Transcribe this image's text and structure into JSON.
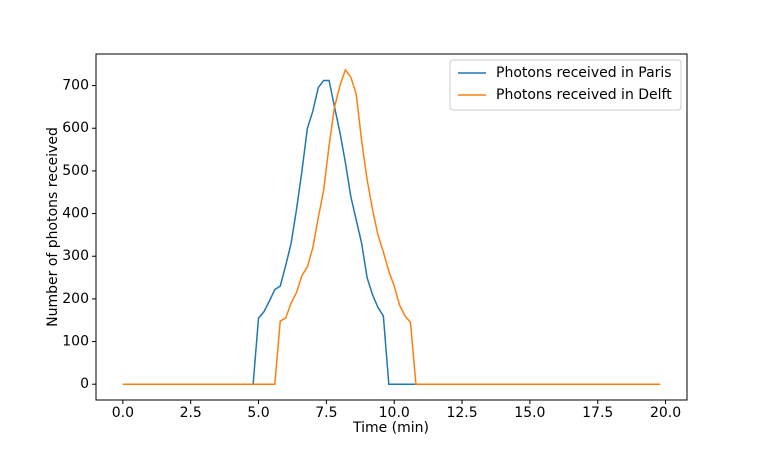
{
  "chart_data": {
    "type": "line",
    "xlabel": "Time (min)",
    "ylabel": "Number of photons received",
    "x": [
      0,
      0.2,
      0.4,
      0.6,
      0.8,
      1,
      1.2,
      1.4,
      1.6,
      1.8,
      2,
      2.2,
      2.4,
      2.6,
      2.8,
      3,
      3.2,
      3.4,
      3.6,
      3.8,
      4,
      4.2,
      4.4,
      4.6,
      4.8,
      5,
      5.2,
      5.4,
      5.6,
      5.8,
      6,
      6.2,
      6.4,
      6.6,
      6.8,
      7,
      7.2,
      7.4,
      7.6,
      7.8,
      8,
      8.2,
      8.4,
      8.6,
      8.8,
      9,
      9.2,
      9.4,
      9.6,
      9.8,
      10,
      10.2,
      10.4,
      10.6,
      10.8,
      11,
      11.2,
      11.4,
      11.6,
      11.8,
      12,
      12.2,
      12.4,
      12.6,
      12.8,
      13,
      13.2,
      13.4,
      13.6,
      13.8,
      14,
      14.2,
      14.4,
      14.6,
      14.8,
      15,
      15.2,
      15.4,
      15.6,
      15.8,
      16,
      16.2,
      16.4,
      16.6,
      16.8,
      17,
      17.2,
      17.4,
      17.6,
      17.8,
      18,
      18.2,
      18.4,
      18.6,
      18.8,
      19,
      19.2,
      19.4,
      19.6,
      19.8
    ],
    "series": [
      {
        "name": "Photons received in Paris",
        "color": "#1f77b4",
        "values": [
          0,
          0,
          0,
          0,
          0,
          0,
          0,
          0,
          0,
          0,
          0,
          0,
          0,
          0,
          0,
          0,
          0,
          0,
          0,
          0,
          0,
          0,
          0,
          0,
          0,
          155,
          170,
          195,
          222,
          230,
          278,
          330,
          410,
          500,
          600,
          640,
          695,
          712,
          712,
          650,
          590,
          520,
          440,
          385,
          330,
          250,
          210,
          180,
          160,
          0,
          0,
          0,
          0,
          0,
          0,
          0,
          0,
          0,
          0,
          0,
          0,
          0,
          0,
          0,
          0,
          0,
          0,
          0,
          0,
          0,
          0,
          0,
          0,
          0,
          0,
          0,
          0,
          0,
          0,
          0,
          0,
          0,
          0,
          0,
          0,
          0,
          0,
          0,
          0,
          0,
          0,
          0,
          0,
          0,
          0,
          0,
          0,
          0,
          0,
          0
        ]
      },
      {
        "name": "Photons received in Delft",
        "color": "#ff7f0e",
        "values": [
          0,
          0,
          0,
          0,
          0,
          0,
          0,
          0,
          0,
          0,
          0,
          0,
          0,
          0,
          0,
          0,
          0,
          0,
          0,
          0,
          0,
          0,
          0,
          0,
          0,
          0,
          0,
          0,
          0,
          148,
          155,
          190,
          215,
          255,
          275,
          320,
          390,
          455,
          560,
          650,
          700,
          737,
          720,
          680,
          570,
          480,
          410,
          350,
          310,
          265,
          230,
          185,
          160,
          145,
          0,
          0,
          0,
          0,
          0,
          0,
          0,
          0,
          0,
          0,
          0,
          0,
          0,
          0,
          0,
          0,
          0,
          0,
          0,
          0,
          0,
          0,
          0,
          0,
          0,
          0,
          0,
          0,
          0,
          0,
          0,
          0,
          0,
          0,
          0,
          0,
          0,
          0,
          0,
          0,
          0,
          0,
          0,
          0,
          0,
          0
        ]
      }
    ],
    "xlim": [
      -0.99,
      20.79
    ],
    "ylim": [
      -37,
      774
    ],
    "xticks": [
      {
        "value": 0,
        "label": "0.0"
      },
      {
        "value": 2.5,
        "label": "2.5"
      },
      {
        "value": 5,
        "label": "5.0"
      },
      {
        "value": 7.5,
        "label": "7.5"
      },
      {
        "value": 10,
        "label": "10.0"
      },
      {
        "value": 12.5,
        "label": "12.5"
      },
      {
        "value": 15,
        "label": "15.0"
      },
      {
        "value": 17.5,
        "label": "17.5"
      },
      {
        "value": 20,
        "label": "20.0"
      }
    ],
    "yticks": [
      0,
      100,
      200,
      300,
      400,
      500,
      600,
      700
    ],
    "legend": "upper right"
  }
}
